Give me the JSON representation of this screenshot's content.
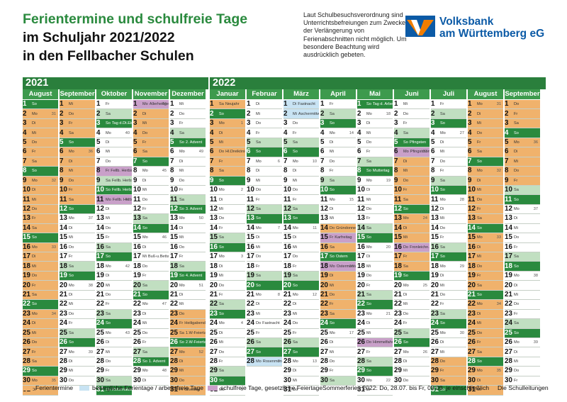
{
  "title": {
    "line1": "Ferientermine und schulfreie Tage",
    "line2": "im Schuljahr 2021/2022",
    "line3": "in den Fellbacher Schulen"
  },
  "note": "Laut Schulbesuchsverordnung sind Unterrichtsbefreiungen zum Zwecke der Verlängerung von Ferienabschnitten nicht möglich. Um besondere Beachtung wird ausdrücklich gebeten.",
  "brand": {
    "line1": "Volksbank",
    "line2": "am Württemberg eG",
    "color": "#0b5aa6"
  },
  "years": [
    "2021",
    "2022"
  ],
  "colors": {
    "ferien": "#f0b26c",
    "beweglich": "#c8e3f3",
    "schulfrei": "#c9a0c9",
    "weekend": "#c1dfc1",
    "sunday": "#2a8a3e",
    "header": "#2a7f3c"
  },
  "months": [
    {
      "name": "August",
      "year": 2021,
      "m": 8,
      "labels": {
        "5": "",
        "31": ""
      },
      "kw": {
        "2": "31",
        "9": "32",
        "16": "33",
        "23": "34",
        "30": "35"
      },
      "ferien": "1-31"
    },
    {
      "name": "September",
      "year": 2021,
      "m": 9,
      "labels": {},
      "kw": {
        "6": "36",
        "13": "37",
        "20": "38",
        "27": "39"
      },
      "ferien": "1-12"
    },
    {
      "name": "Oktober",
      "year": 2021,
      "m": 10,
      "labels": {
        "3": "Tag d.Dt.Einheit",
        "8": "Fellb. Herbst",
        "9": "Fellb. Herbst",
        "10": "Fellb. Herbst",
        "11": "Fellb. Herbst",
        "31": "Reformationstag"
      },
      "kw": {
        "4": "40",
        "11": "41",
        "18": "42",
        "25": "43"
      },
      "ferien": "",
      "sch": "8,11"
    },
    {
      "name": "November",
      "year": 2021,
      "m": 11,
      "labels": {
        "1": "Allerheiligen",
        "17": "Buß-u.Bettag",
        "28": "1. Advent"
      },
      "kw": {
        "1": "44",
        "8": "45",
        "15": "46",
        "22": "47",
        "29": "48"
      },
      "ferien": "2-6",
      "sch": "1"
    },
    {
      "name": "Dezember",
      "year": 2021,
      "m": 12,
      "labels": {
        "5": "2. Advent",
        "12": "3. Advent",
        "19": "4. Advent",
        "24": "Heiligabend",
        "25": "1.W-Feiertag",
        "26": "2.W-Feiertag",
        "31": "Silvester"
      },
      "kw": {
        "6": "49",
        "13": "50",
        "20": "51",
        "27": "52"
      },
      "ferien": "23-31"
    },
    {
      "name": "Januar",
      "year": 2022,
      "m": 1,
      "labels": {
        "1": "Neujahr",
        "6": "Hl.Dreikönige"
      },
      "kw": {
        "3": "1",
        "10": "2",
        "17": "3",
        "24": "4",
        "31": "5"
      },
      "ferien": "1-8"
    },
    {
      "name": "Februar",
      "year": 2022,
      "m": 2,
      "labels": {
        "24": "Fastnacht",
        "28": "Rosenmontag"
      },
      "kw": {
        "7": "6",
        "14": "7",
        "21": "8",
        "28": "9"
      },
      "ferien": "",
      "mov": "28"
    },
    {
      "name": "März",
      "year": 2022,
      "m": 3,
      "labels": {
        "1": "Fastnacht",
        "2": "Aschermittw."
      },
      "kw": {
        "7": "10",
        "14": "11",
        "21": "12",
        "28": "13"
      },
      "ferien": "",
      "mov": "1,2"
    },
    {
      "name": "April",
      "year": 2022,
      "m": 4,
      "labels": {
        "14": "Gründonnerstag",
        "15": "Karfreitag",
        "17": "Ostern",
        "18": "Ostermontag"
      },
      "kw": {
        "4": "14",
        "11": "15",
        "18": "16",
        "25": "17"
      },
      "ferien": "14-23",
      "sch": "15,18"
    },
    {
      "name": "Mai",
      "year": 2022,
      "m": 5,
      "labels": {
        "1": "Tag d. Arbeit",
        "8": "Muttertag",
        "26": "Himmelfahrt"
      },
      "kw": {
        "2": "18",
        "9": "19",
        "16": "20",
        "23": "21",
        "30": "22"
      },
      "ferien": "",
      "sch": "26"
    },
    {
      "name": "Juni",
      "year": 2022,
      "m": 6,
      "labels": {
        "5": "Pfingsten",
        "6": "Pfingstmont.",
        "16": "Fronleichn."
      },
      "kw": {
        "6": "23",
        "13": "24",
        "20": "25",
        "27": "26"
      },
      "ferien": "7-18",
      "sch": "6,16"
    },
    {
      "name": "Juli",
      "year": 2022,
      "m": 7,
      "labels": {},
      "kw": {
        "4": "27",
        "11": "28",
        "18": "29",
        "25": "30"
      },
      "ferien": "28-31"
    },
    {
      "name": "August",
      "year": 2022,
      "m": 8,
      "labels": {},
      "kw": {
        "1": "31",
        "8": "32",
        "15": "33",
        "22": "34",
        "29": "35"
      },
      "ferien": "1-31"
    },
    {
      "name": "September",
      "year": 2022,
      "m": 9,
      "labels": {},
      "kw": {
        "5": "36",
        "12": "37",
        "19": "38",
        "26": "39"
      },
      "ferien": "1-9"
    }
  ],
  "weekdays": [
    "So",
    "Mo",
    "Di",
    "Mi",
    "Do",
    "Fr",
    "Sa"
  ],
  "legend": {
    "ferien": "Ferientermine",
    "beweglich": "bewegliche Ferientage / arbeitsfreie Tage",
    "schulfrei": "schulfreie Tage, gesetzliche Feiertage",
    "summer": "Sommerferien 2022: Do, 28.07. bis Fr, 09.09. je einschließlich",
    "sign": "Die Schulleitungen"
  }
}
